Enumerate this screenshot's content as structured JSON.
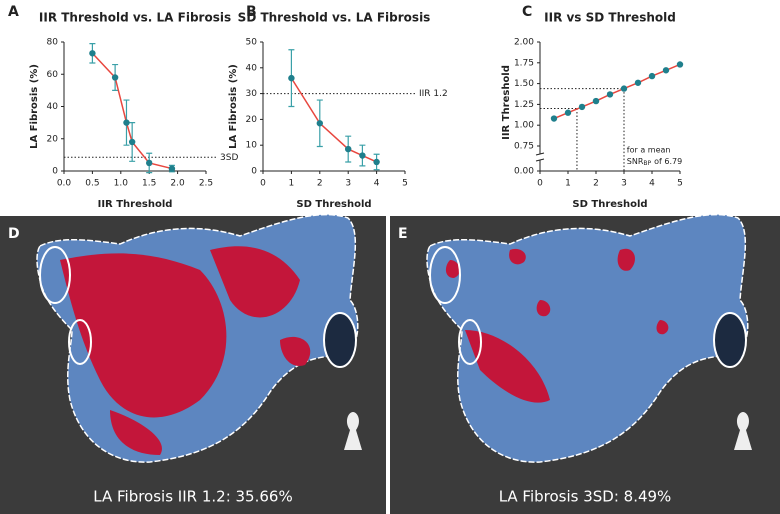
{
  "chart_data": [
    {
      "type": "line",
      "panel": "A",
      "title": "IIR Threshold vs. LA Fibrosis",
      "x_label": "IIR Threshold",
      "y_label": "LA Fibrosis (%)",
      "x": [
        0.5,
        0.9,
        1.1,
        1.2,
        1.5,
        1.9
      ],
      "values": [
        73,
        58,
        30,
        18,
        5,
        1.5
      ],
      "errors": [
        6,
        8,
        14,
        12,
        6,
        2
      ],
      "color": "#e8473f",
      "marker_color": "#1f7f8c",
      "error_color": "#3aa0a8",
      "xlim": [
        0,
        2.5
      ],
      "xticks": [
        {
          "value": 0,
          "label": "0.0"
        },
        0.5,
        {
          "value": 1,
          "label": "1.0"
        },
        1.5,
        {
          "value": 2,
          "label": "2.0"
        },
        2.5
      ],
      "ylim": [
        0,
        80
      ],
      "yticks": [
        0,
        20,
        40,
        60,
        80
      ],
      "refline": {
        "y": 8.49,
        "label": "3SD"
      }
    },
    {
      "type": "line",
      "panel": "B",
      "title": "SD Threshold vs. LA Fibrosis",
      "x_label": "SD Threshold",
      "y_label": "LA Fibrosis (%)",
      "x": [
        1,
        2,
        3,
        3.5,
        4
      ],
      "values": [
        36,
        18.5,
        8.5,
        6,
        3.5
      ],
      "errors": [
        11,
        9,
        5,
        4,
        3
      ],
      "color": "#e8473f",
      "marker_color": "#1f7f8c",
      "error_color": "#3aa0a8",
      "xlim": [
        0,
        5
      ],
      "xticks": [
        0,
        1,
        2,
        3,
        4,
        5
      ],
      "ylim": [
        0,
        50
      ],
      "yticks": [
        0,
        10,
        20,
        30,
        40,
        50
      ],
      "refline": {
        "y": 30,
        "label": "IIR 1.2"
      }
    },
    {
      "type": "line",
      "panel": "C",
      "title": "IIR vs SD Threshold",
      "x_label": "SD Threshold",
      "y_label": "IIR Threshold",
      "x": [
        0.5,
        1,
        1.5,
        2,
        2.5,
        3,
        3.5,
        4,
        4.5,
        5
      ],
      "values": [
        1.08,
        1.15,
        1.22,
        1.29,
        1.37,
        1.44,
        1.51,
        1.59,
        1.66,
        1.73
      ],
      "color": "#e8473f",
      "marker_color": "#1f7f8c",
      "xlim": [
        0,
        5
      ],
      "xticks": [
        0,
        1,
        2,
        3,
        4,
        5
      ],
      "ylim": [
        0,
        2
      ],
      "axis_break": [
        0,
        0.75
      ],
      "yticks": [
        {
          "value": 0,
          "label": "0.00"
        },
        {
          "value": 0.75,
          "label": "0.75"
        },
        {
          "value": 1,
          "label": "1.00"
        },
        {
          "value": 1.25,
          "label": "1.25"
        },
        {
          "value": 1.5,
          "label": "1.50"
        },
        {
          "value": 1.75,
          "label": "1.75"
        },
        {
          "value": 2,
          "label": "2.00"
        }
      ],
      "crosshairs": [
        {
          "x": 3,
          "y": 1.44
        },
        {
          "x": 1.32,
          "y": 1.2
        }
      ],
      "annotation": {
        "line1": "for a mean",
        "snr": "SNR",
        "sub": "BP",
        "rest": "of 6.79"
      }
    }
  ],
  "images": [
    {
      "panel": "D",
      "caption": "LA Fibrosis IIR 1.2: 35.66%"
    },
    {
      "panel": "E",
      "caption": "LA Fibrosis 3SD: 8.49%"
    }
  ]
}
